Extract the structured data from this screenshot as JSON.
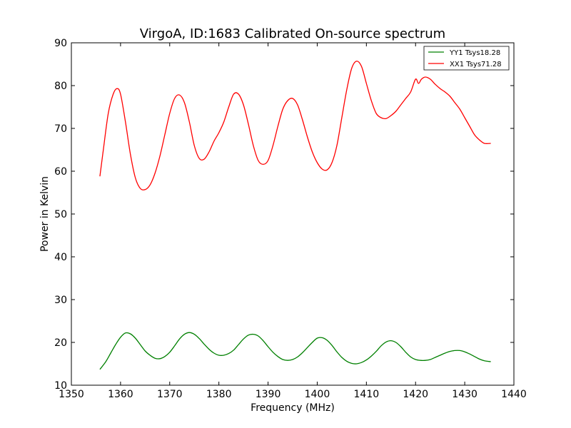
{
  "chart_data": {
    "type": "line",
    "title": "VirgoA, ID:1683 Calibrated On-source spectrum",
    "xlabel": "Frequency (MHz)",
    "ylabel": "Power in Kelvin",
    "xlim": [
      1350,
      1440
    ],
    "ylim": [
      10,
      90
    ],
    "xticks": [
      1350,
      1360,
      1370,
      1380,
      1390,
      1400,
      1410,
      1420,
      1430,
      1440
    ],
    "yticks": [
      10,
      20,
      30,
      40,
      50,
      60,
      70,
      80,
      90
    ],
    "grid": false,
    "legend_position": "top-right",
    "series": [
      {
        "name": "YY1 Tsys18.28",
        "color": "#008000",
        "x": [
          1355.8,
          1357,
          1358,
          1359,
          1360,
          1361,
          1362,
          1363,
          1364,
          1365,
          1366,
          1367,
          1368,
          1369,
          1370,
          1371,
          1372,
          1373,
          1374,
          1375,
          1376,
          1377,
          1378,
          1379,
          1380,
          1381,
          1382,
          1383,
          1384,
          1385,
          1386,
          1387,
          1388,
          1389,
          1390,
          1391,
          1392,
          1393,
          1394,
          1395,
          1396,
          1397,
          1398,
          1399,
          1400,
          1401,
          1402,
          1403,
          1404,
          1405,
          1406,
          1407,
          1408,
          1409,
          1410,
          1411,
          1412,
          1413,
          1414,
          1415,
          1416,
          1417,
          1418,
          1419,
          1420,
          1421,
          1422,
          1423,
          1424,
          1425,
          1426,
          1427,
          1428,
          1429,
          1430,
          1431,
          1432,
          1433,
          1434,
          1435.3
        ],
        "values": [
          13.7,
          15.5,
          17.5,
          19.5,
          21.2,
          22.2,
          22.0,
          21.0,
          19.5,
          18.0,
          17.0,
          16.3,
          16.2,
          16.7,
          17.7,
          19.2,
          20.8,
          21.9,
          22.3,
          21.9,
          20.9,
          19.6,
          18.4,
          17.5,
          17.0,
          17.0,
          17.4,
          18.2,
          19.5,
          20.8,
          21.7,
          21.9,
          21.5,
          20.4,
          19.0,
          17.7,
          16.7,
          16.0,
          15.8,
          16.0,
          16.6,
          17.6,
          18.8,
          20.0,
          21.0,
          21.1,
          20.5,
          19.3,
          17.8,
          16.5,
          15.6,
          15.1,
          15.0,
          15.3,
          15.9,
          16.8,
          17.9,
          19.2,
          20.1,
          20.4,
          20.0,
          19.0,
          17.7,
          16.6,
          16.0,
          15.8,
          15.8,
          16.0,
          16.5,
          17.0,
          17.5,
          17.9,
          18.1,
          18.1,
          17.8,
          17.3,
          16.7,
          16.1,
          15.7,
          15.5
        ]
      },
      {
        "name": "XX1 Tsys71.28",
        "color": "#ff0000",
        "x": [
          1355.8,
          1356.5,
          1357.5,
          1358.5,
          1359.3,
          1360,
          1361,
          1362,
          1363,
          1364,
          1365,
          1366,
          1367,
          1368,
          1369,
          1370,
          1371,
          1372,
          1373,
          1374,
          1375,
          1376,
          1377,
          1378,
          1379,
          1380,
          1381,
          1382,
          1383,
          1384,
          1385,
          1386,
          1387,
          1388,
          1389,
          1390,
          1391,
          1392,
          1393,
          1394,
          1395,
          1396,
          1397,
          1398,
          1399,
          1400,
          1401,
          1402,
          1403,
          1404,
          1405,
          1406,
          1407,
          1408,
          1409,
          1410,
          1411,
          1412,
          1413,
          1414,
          1415,
          1416,
          1417,
          1418,
          1419,
          1420,
          1420.6,
          1421.2,
          1422,
          1423,
          1424,
          1425,
          1426,
          1427,
          1428,
          1429,
          1430,
          1431,
          1432,
          1433,
          1434,
          1435.3
        ],
        "values": [
          58.8,
          65.0,
          73.5,
          78.0,
          79.3,
          78.0,
          71.5,
          64.0,
          58.5,
          56.0,
          55.7,
          56.8,
          59.5,
          63.5,
          68.5,
          73.5,
          77.0,
          77.8,
          76.0,
          71.5,
          66.0,
          63.0,
          62.8,
          64.5,
          67.0,
          69.0,
          71.5,
          75.0,
          78.0,
          78.0,
          75.5,
          71.0,
          66.0,
          62.5,
          61.6,
          62.5,
          66.0,
          70.5,
          74.5,
          76.5,
          77.0,
          75.5,
          72.0,
          68.0,
          64.5,
          62.0,
          60.5,
          60.3,
          62.0,
          66.0,
          72.5,
          79.0,
          84.0,
          85.7,
          84.5,
          80.5,
          76.5,
          73.5,
          72.5,
          72.3,
          73.0,
          74.0,
          75.5,
          77.0,
          78.5,
          81.5,
          80.5,
          81.5,
          82.0,
          81.5,
          80.3,
          79.3,
          78.5,
          77.5,
          76.0,
          74.5,
          72.5,
          70.5,
          68.5,
          67.3,
          66.5,
          66.5
        ]
      }
    ]
  }
}
